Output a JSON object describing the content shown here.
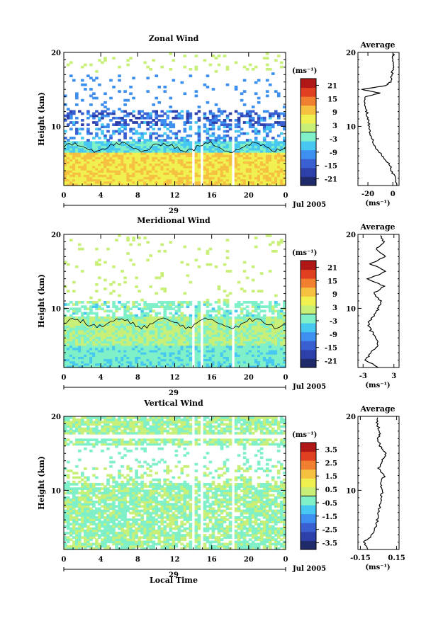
{
  "chart_data": [
    {
      "type": "heatmap",
      "title": "Zonal Wind",
      "ylabel": "Height (km)",
      "ylim": [
        2,
        20
      ],
      "xlim": [
        0,
        24
      ],
      "x_ticks": [
        "0",
        "4",
        "8",
        "12",
        "16",
        "20",
        "0"
      ],
      "y_ticks": [
        "20",
        "10"
      ],
      "date_label": "29",
      "month_label": "Jul 2005",
      "colorbar": {
        "unit": "(ms⁻¹)",
        "ticks": [
          "21",
          "15",
          "9",
          "3",
          "-3",
          "-9",
          "-15",
          "-21"
        ],
        "range": [
          -24,
          24
        ]
      },
      "average": {
        "title": "Average",
        "xlabel": "(ms⁻¹)",
        "x_ticks": [
          "-20",
          "0"
        ],
        "xlim": [
          -28,
          5
        ],
        "y_ticks": [
          "20",
          "10"
        ],
        "profile": [
          [
            2,
            3.5
          ],
          [
            3,
            2.5
          ],
          [
            4,
            -1
          ],
          [
            5,
            -3
          ],
          [
            6,
            -8
          ],
          [
            7,
            -13
          ],
          [
            8,
            -16
          ],
          [
            9,
            -18
          ],
          [
            10,
            -19
          ],
          [
            11,
            -20
          ],
          [
            12,
            -21
          ],
          [
            13,
            -22
          ],
          [
            14,
            -23
          ],
          [
            14.5,
            -10
          ],
          [
            15,
            -25
          ],
          [
            15.5,
            -5
          ],
          [
            16,
            -2
          ],
          [
            17,
            -0.5
          ],
          [
            18,
            0
          ],
          [
            19,
            0.5
          ],
          [
            20,
            0.3
          ]
        ]
      }
    },
    {
      "type": "heatmap",
      "title": "Meridional Wind",
      "ylabel": "Height (km)",
      "ylim": [
        2,
        20
      ],
      "xlim": [
        0,
        24
      ],
      "x_ticks": [
        "0",
        "4",
        "8",
        "12",
        "16",
        "20",
        "0"
      ],
      "y_ticks": [
        "20",
        "10"
      ],
      "date_label": "29",
      "month_label": "Jul 2005",
      "colorbar": {
        "unit": "(ms⁻¹)",
        "ticks": [
          "21",
          "15",
          "9",
          "3",
          "-3",
          "-9",
          "-15",
          "-21"
        ],
        "range": [
          -24,
          24
        ]
      },
      "average": {
        "title": "Average",
        "xlabel": "(ms⁻¹)",
        "x_ticks": [
          "-3",
          "3"
        ],
        "xlim": [
          -4,
          4
        ],
        "y_ticks": [
          "20",
          "10"
        ],
        "profile": [
          [
            2,
            0.2
          ],
          [
            3,
            -2.5
          ],
          [
            4,
            -1.5
          ],
          [
            5,
            0
          ],
          [
            6,
            -0.5
          ],
          [
            7,
            -1.5
          ],
          [
            8,
            -2
          ],
          [
            9,
            -1
          ],
          [
            10,
            0
          ],
          [
            11,
            0.5
          ],
          [
            12,
            -1
          ],
          [
            13,
            1
          ],
          [
            14,
            -2
          ],
          [
            15,
            1.5
          ],
          [
            16,
            -1.5
          ],
          [
            17,
            1.2
          ],
          [
            18,
            -0.5
          ],
          [
            19,
            1
          ],
          [
            20,
            0.5
          ]
        ]
      }
    },
    {
      "type": "heatmap",
      "title": "Vertical Wind",
      "xlabel": "Local Time",
      "ylabel": "Height (km)",
      "ylim": [
        2,
        20
      ],
      "xlim": [
        0,
        24
      ],
      "x_ticks": [
        "0",
        "4",
        "8",
        "12",
        "16",
        "20",
        "0"
      ],
      "y_ticks": [
        "20",
        "10"
      ],
      "date_label": "29",
      "month_label": "Jul 2005",
      "colorbar": {
        "unit": "(ms⁻¹)",
        "ticks": [
          "3.5",
          "2.5",
          "1.5",
          "0.5",
          "-0.5",
          "-1.5",
          "-2.5",
          "-3.5"
        ],
        "range": [
          -4,
          4
        ]
      },
      "average": {
        "title": "Average",
        "xlabel": "(ms⁻¹)",
        "x_ticks": [
          "-0.15",
          "0.15"
        ],
        "xlim": [
          -0.17,
          0.17
        ],
        "y_ticks": [
          "20",
          "10"
        ],
        "profile": [
          [
            2,
            -0.08
          ],
          [
            3,
            -0.12
          ],
          [
            4,
            -0.05
          ],
          [
            5,
            -0.02
          ],
          [
            6,
            -0.01
          ],
          [
            7,
            0.0
          ],
          [
            8,
            0.01
          ],
          [
            9,
            0.02
          ],
          [
            10,
            0.03
          ],
          [
            11,
            0.02
          ],
          [
            12,
            0.05
          ],
          [
            13,
            0.0
          ],
          [
            14,
            0.03
          ],
          [
            15,
            0.06
          ],
          [
            16,
            0.01
          ],
          [
            17,
            0.0
          ],
          [
            18,
            0.01
          ],
          [
            19,
            -0.01
          ],
          [
            20,
            0.0
          ]
        ]
      }
    }
  ]
}
